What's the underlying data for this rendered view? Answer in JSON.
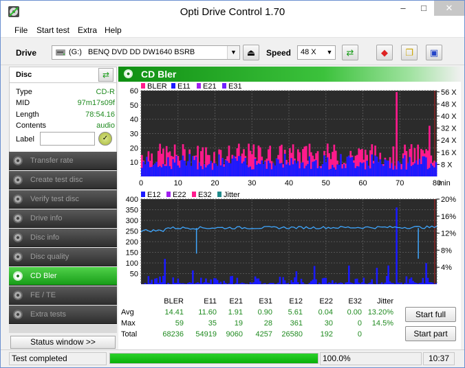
{
  "window": {
    "title": "Opti Drive Control 1.70",
    "controls": {
      "minimize": "–",
      "maximize": "□",
      "close": "✕"
    }
  },
  "menu": [
    "File",
    "Start test",
    "Extra",
    "Help"
  ],
  "toolbar": {
    "drive_label": "Drive",
    "drive_letter": "(G:)",
    "drive_name": "BENQ DVD DD DW1640 BSRB",
    "speed_label": "Speed",
    "speed_value": "48 X",
    "icons": [
      "eject-icon",
      "refresh-icon",
      "erase-icon",
      "copy-icon",
      "save-icon"
    ]
  },
  "disc": {
    "header": "Disc",
    "type_label": "Type",
    "type_value": "CD-R",
    "mid_label": "MID",
    "mid_value": "97m17s09f",
    "length_label": "Length",
    "length_value": "78:54.16",
    "contents_label": "Contents",
    "contents_value": "audio",
    "label_label": "Label",
    "label_value": ""
  },
  "nav": [
    {
      "label": "Transfer rate",
      "active": false
    },
    {
      "label": "Create test disc",
      "active": false
    },
    {
      "label": "Verify test disc",
      "active": false
    },
    {
      "label": "Drive info",
      "active": false
    },
    {
      "label": "Disc info",
      "active": false
    },
    {
      "label": "Disc quality",
      "active": false
    },
    {
      "label": "CD Bler",
      "active": true
    },
    {
      "label": "FE / TE",
      "active": false
    },
    {
      "label": "Extra tests",
      "active": false
    }
  ],
  "status_window_button": "Status window >>",
  "main": {
    "title": "CD Bler"
  },
  "chart_data": [
    {
      "type": "bar",
      "legend": [
        "BLER",
        "E11",
        "E21",
        "E31"
      ],
      "legend_colors": [
        "#ff1a8c",
        "#1a1aff",
        "#a020f0",
        "#7020ff"
      ],
      "x_ticks": [
        0,
        10,
        20,
        30,
        40,
        50,
        60,
        70,
        80
      ],
      "x_unit": "min",
      "xlim": [
        0,
        80
      ],
      "y_left_ticks": [
        10,
        20,
        30,
        40,
        50,
        60
      ],
      "ylim_left": [
        0,
        60
      ],
      "y_right_ticks": [
        "8 X",
        "16 X",
        "24 X",
        "32 X",
        "40 X",
        "48 X",
        "56 X"
      ],
      "series_summary": {
        "BLER": {
          "avg": 14.41,
          "max": 59
        },
        "E11": {
          "avg": 11.6,
          "max": 35
        },
        "E21": {
          "avg": 1.91,
          "max": 19
        },
        "E31": {
          "avg": 0.9,
          "max": 28
        }
      }
    },
    {
      "type": "bar",
      "legend": [
        "E12",
        "E22",
        "E32",
        "Jitter"
      ],
      "legend_colors": [
        "#1a1aff",
        "#a020f0",
        "#ff1a8c",
        "#1f8a8a"
      ],
      "x_ticks": [
        0,
        10,
        20,
        30,
        40,
        50,
        60,
        70,
        80
      ],
      "x_unit": "min",
      "xlim": [
        0,
        80
      ],
      "y_left_ticks": [
        50,
        100,
        150,
        200,
        250,
        300,
        350,
        400
      ],
      "ylim_left": [
        0,
        400
      ],
      "y_right_ticks": [
        "4%",
        "8%",
        "12%",
        "16%",
        "20%"
      ],
      "ylim_right": [
        0,
        20
      ],
      "jitter_avg_percent": 13.2,
      "series_summary": {
        "E12": {
          "avg": 5.61,
          "max": 361
        },
        "E22": {
          "avg": 0.04,
          "max": 30
        },
        "E32": {
          "avg": 0.0,
          "max": 0
        }
      }
    }
  ],
  "stats": {
    "columns": [
      "",
      "BLER",
      "E11",
      "E21",
      "E31",
      "E12",
      "E22",
      "E32",
      "Jitter"
    ],
    "rows": [
      [
        "Avg",
        "14.41",
        "11.60",
        "1.91",
        "0.90",
        "5.61",
        "0.04",
        "0.00",
        "13.20%"
      ],
      [
        "Max",
        "59",
        "35",
        "19",
        "28",
        "361",
        "30",
        "0",
        "14.5%"
      ],
      [
        "Total",
        "68236",
        "54919",
        "9060",
        "4257",
        "26580",
        "192",
        "0",
        ""
      ]
    ]
  },
  "buttons": {
    "start_full": "Start full",
    "start_part": "Start part"
  },
  "statusbar": {
    "status_text": "Test completed",
    "progress_text": "100.0%",
    "progress_fraction": 1.0,
    "time": "10:37"
  }
}
